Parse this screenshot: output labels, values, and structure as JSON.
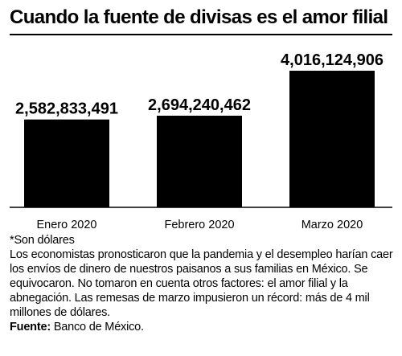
{
  "title": "Cuando la fuente de divisas es el amor filial",
  "colors": {
    "bar": "#000000",
    "text": "#000000",
    "background": "#ffffff"
  },
  "footnote": "*Son dólares",
  "description": "Los economistas pronosticaron que la pandemia y el desempleo harían caer los envíos de dinero de nuestros paisanos a sus familias en México. Se equivocaron. No tomaron en cuenta otros factores: el amor filial y la abnegación. Las remesas de marzo impusieron un récord: más de 4 mil millones de dólares.",
  "source": {
    "label": "Fuente:",
    "text": "Banco de México."
  },
  "chart_data": {
    "type": "bar",
    "title": "Cuando la fuente de divisas es el amor filial",
    "categories": [
      "Enero 2020",
      "Febrero 2020",
      "Marzo 2020"
    ],
    "values": [
      2582833491,
      2694240462,
      4016124906
    ],
    "value_labels": [
      "2,582,833,491",
      "2,694,240,462",
      "4,016,124,906"
    ],
    "xlabel": "",
    "ylabel": "",
    "ylim": [
      0,
      4300000000
    ],
    "grid": false,
    "legend": "none"
  }
}
